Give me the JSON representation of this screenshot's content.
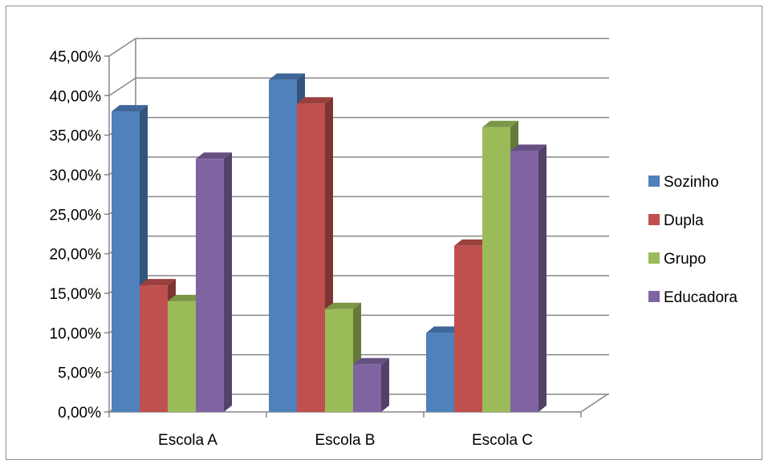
{
  "chart_data": {
    "type": "bar",
    "title": "",
    "xlabel": "",
    "ylabel": "",
    "categories": [
      "Escola A",
      "Escola B",
      "Escola C"
    ],
    "series": [
      {
        "name": "Sozinho",
        "color": "#4F81BD",
        "values": [
          0.38,
          0.42,
          0.1
        ]
      },
      {
        "name": "Dupla",
        "color": "#C0504D",
        "values": [
          0.16,
          0.39,
          0.21
        ]
      },
      {
        "name": "Grupo",
        "color": "#9BBB59",
        "values": [
          0.14,
          0.13,
          0.36
        ]
      },
      {
        "name": "Educadora",
        "color": "#8064A2",
        "values": [
          0.32,
          0.06,
          0.33
        ]
      }
    ],
    "ylim": [
      0,
      0.45
    ],
    "yticks": [
      "0,00%",
      "5,00%",
      "10,00%",
      "15,00%",
      "20,00%",
      "25,00%",
      "30,00%",
      "35,00%",
      "40,00%",
      "45,00%"
    ],
    "grid": true,
    "style": "3d-clustered-column",
    "legend_position": "right"
  }
}
